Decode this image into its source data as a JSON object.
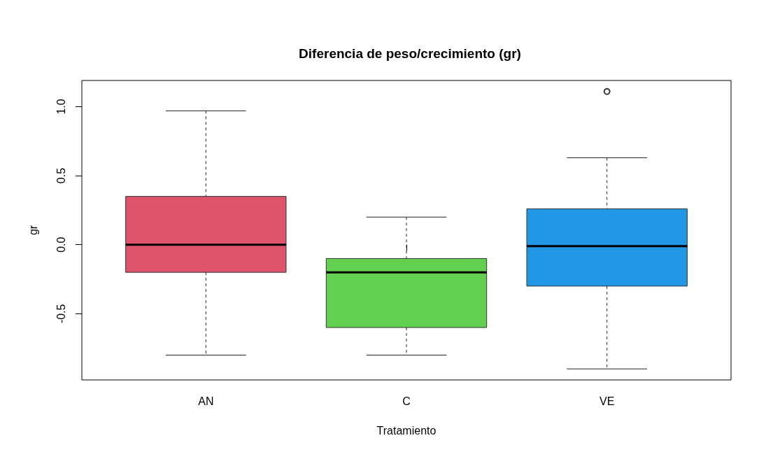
{
  "chart_data": {
    "type": "box",
    "title": "Diferencia de peso/crecimiento (gr)",
    "xlabel": "Tratamiento",
    "ylabel": "gr",
    "categories": [
      "AN",
      "C",
      "VE"
    ],
    "boxes": [
      {
        "low": -0.8,
        "q1": -0.2,
        "median": 0.0,
        "q3": 0.35,
        "high": 0.97
      },
      {
        "low": -0.8,
        "q1": -0.6,
        "median": -0.2,
        "q3": -0.1,
        "high": 0.2
      },
      {
        "low": -0.9,
        "q1": -0.3,
        "median": -0.01,
        "q3": 0.26,
        "high": 0.63,
        "outliers": [
          1.11
        ]
      }
    ],
    "colors": [
      "#df536b",
      "#61d04f",
      "#2297e6"
    ],
    "ylim": [
      -0.98,
      1.19
    ],
    "yticks": [
      -0.5,
      {
        "value": 0,
        "label": "0.0"
      },
      0.5,
      {
        "value": 1,
        "label": "1.0"
      }
    ]
  }
}
